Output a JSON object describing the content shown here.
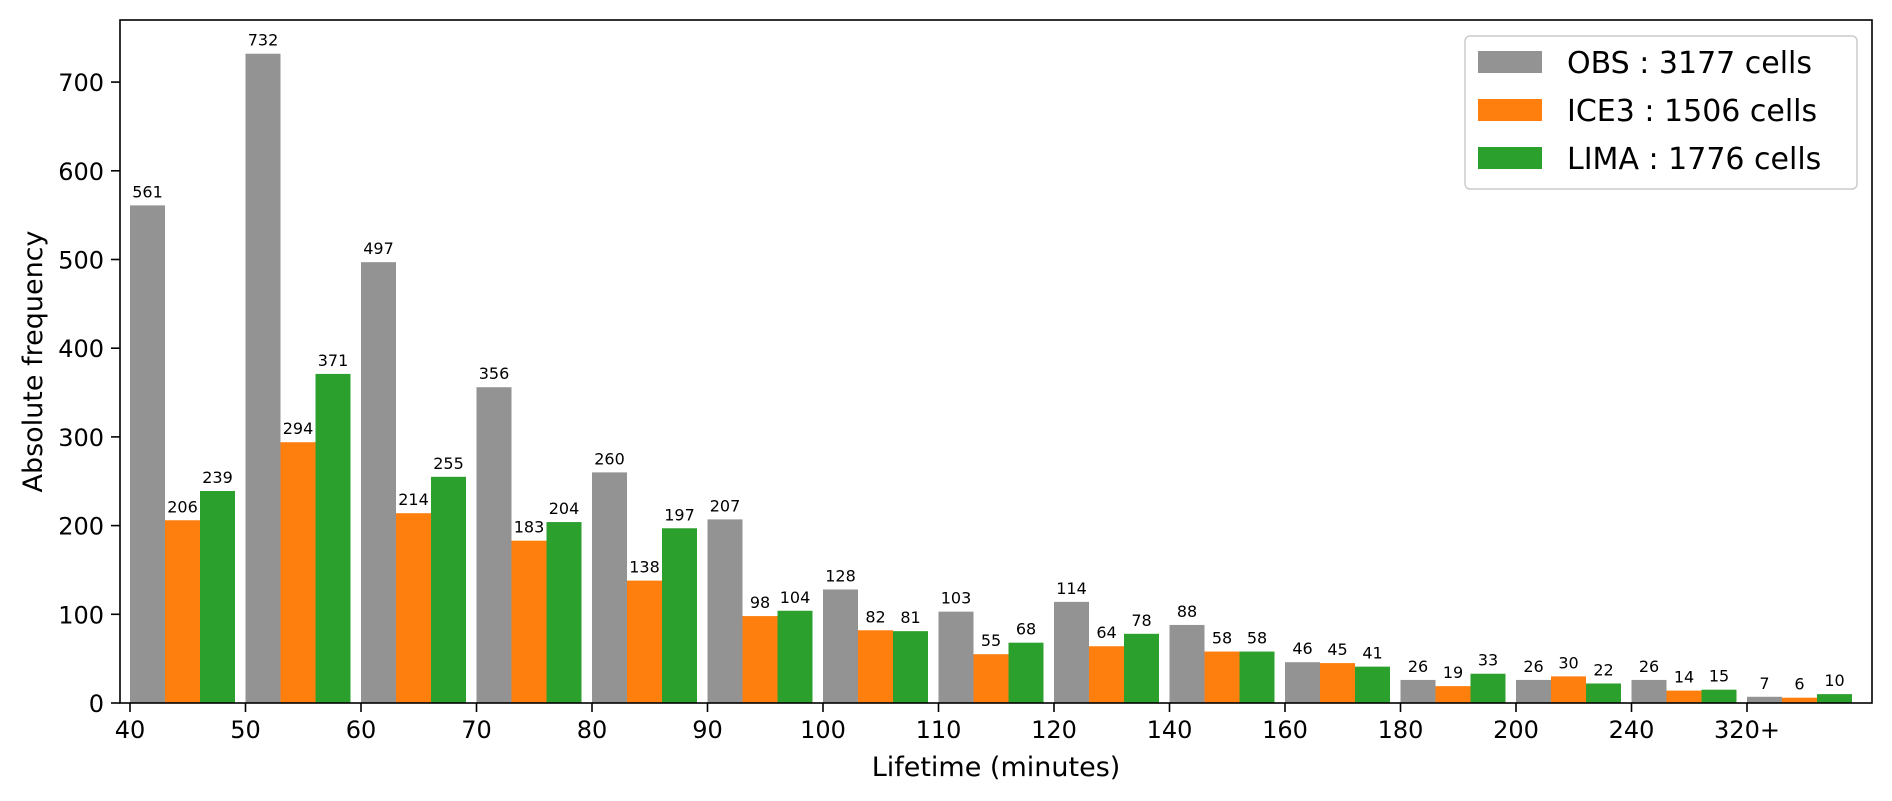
{
  "chart_data": {
    "type": "bar",
    "categories": [
      "40",
      "50",
      "60",
      "70",
      "80",
      "90",
      "100",
      "110",
      "120",
      "140",
      "160",
      "180",
      "200",
      "240",
      "320+"
    ],
    "series": [
      {
        "name": "OBS : 3177 cells",
        "color": "#939393",
        "values": [
          561,
          732,
          497,
          356,
          260,
          207,
          128,
          103,
          114,
          88,
          46,
          26,
          26,
          26,
          7
        ]
      },
      {
        "name": "ICE3 : 1506 cells",
        "color": "#ff7f0e",
        "values": [
          206,
          294,
          214,
          183,
          138,
          98,
          82,
          55,
          64,
          58,
          45,
          19,
          30,
          14,
          6
        ]
      },
      {
        "name": "LIMA : 1776 cells",
        "color": "#2ca02c",
        "values": [
          239,
          371,
          255,
          204,
          197,
          104,
          81,
          68,
          78,
          58,
          41,
          33,
          22,
          15,
          10
        ]
      }
    ],
    "xlabel": "Lifetime (minutes)",
    "ylabel": "Absolute frequency",
    "ylim": [
      0,
      770
    ],
    "yticks": [
      0,
      100,
      200,
      300,
      400,
      500,
      600,
      700
    ],
    "grid": false,
    "legend_position": "top-right"
  }
}
